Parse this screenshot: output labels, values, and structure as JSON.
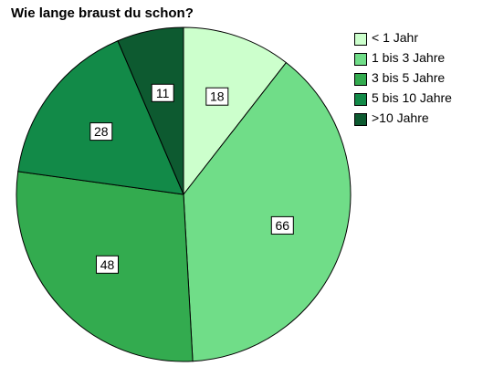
{
  "chart_data": {
    "type": "pie",
    "title": "Wie lange braust du schon?",
    "categories": [
      "< 1 Jahr",
      "1 bis 3 Jahre",
      "3 bis 5 Jahre",
      "5 bis 10 Jahre",
      ">10 Jahre"
    ],
    "values": [
      18,
      66,
      48,
      28,
      11
    ],
    "colors": [
      "#ccffcc",
      "#70dd88",
      "#33ab4f",
      "#128a48",
      "#0d5a30"
    ],
    "slice_border_color": "#000000",
    "legend_position": "right",
    "data_labels": true
  }
}
